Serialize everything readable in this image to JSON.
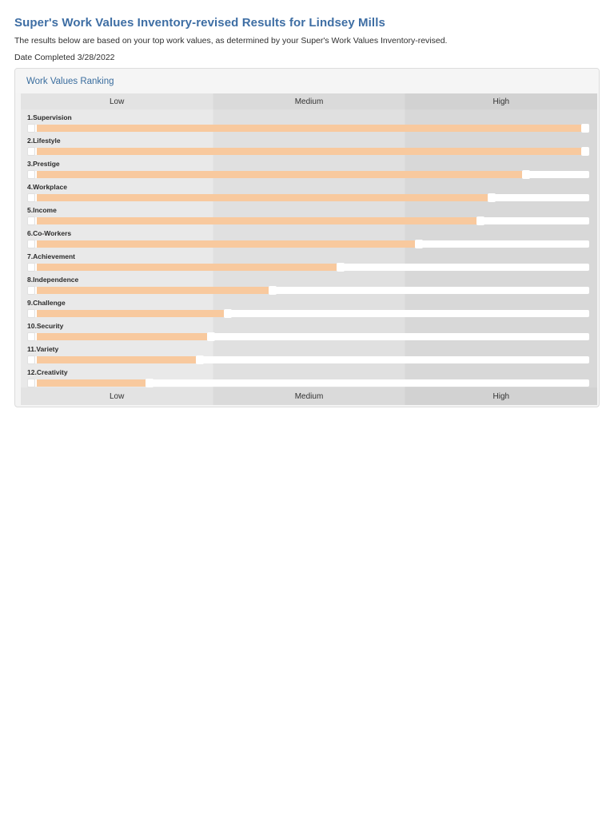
{
  "page": {
    "title": "Super's Work Values Inventory-revised Results for Lindsey Mills",
    "subtitle": "The results below are based on your top work values, as determined by your Super's Work Values Inventory-revised.",
    "date_completed": "Date Completed 3/28/2022"
  },
  "panel": {
    "header": "Work Values Ranking"
  },
  "chart_data": {
    "type": "bar",
    "orientation": "horizontal",
    "title": "Work Values Ranking",
    "scale_labels": [
      "Low",
      "Medium",
      "High"
    ],
    "categories": [
      "1.Supervision",
      "2.Lifestyle",
      "3.Prestige",
      "4.Workplace",
      "5.Income",
      "6.Co-Workers",
      "7.Achievement",
      "8.Independence",
      "9.Challenge",
      "10.Security",
      "11.Variety",
      "12.Creativity"
    ],
    "values": [
      100,
      100,
      88,
      82,
      80,
      69,
      55,
      43,
      35,
      32,
      30,
      21
    ],
    "value_unit": "percent_of_scale",
    "xlim": [
      0,
      100
    ],
    "legend": "none",
    "bar_color": "#f8c99e",
    "track_color": "#ffffff",
    "band_colors": [
      "#e9e9e9",
      "#e0e0e0",
      "#d8d8d8"
    ]
  },
  "colors": {
    "title_blue": "#3e6ea4",
    "panel_header_blue": "#3a6d9e",
    "panel_background": "#f4f4f4",
    "panel_border": "#dcdcdc",
    "bar_orange": "#f8c99e"
  }
}
